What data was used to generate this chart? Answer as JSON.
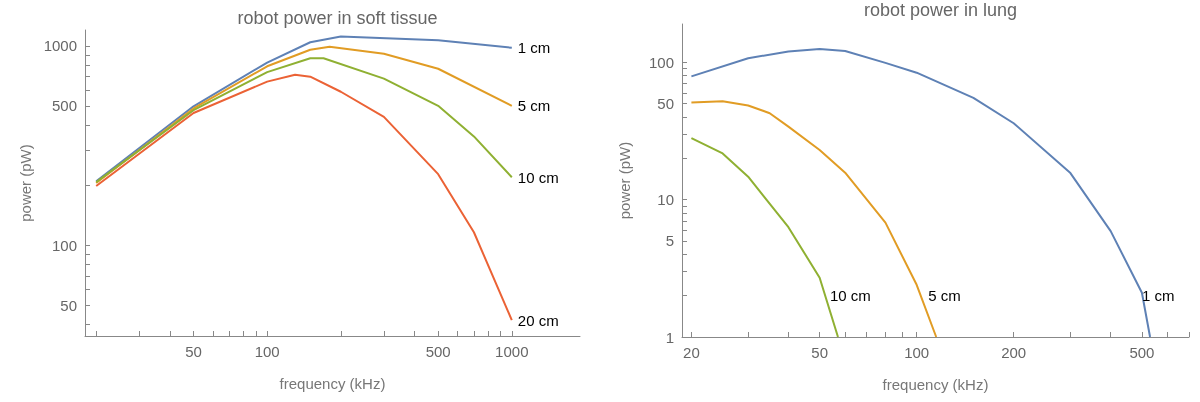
{
  "chart_data": [
    {
      "type": "line",
      "title": "robot power in soft tissue",
      "xlabel": "frequency (kHz)",
      "ylabel": "power (pW)",
      "log": "xy",
      "grid": false,
      "legend": false,
      "line_style": "solid",
      "xlim": [
        18,
        1900
      ],
      "ylim": [
        35,
        1200
      ],
      "xticks": [
        {
          "value": 20,
          "label": null
        },
        {
          "value": 30,
          "label": null
        },
        {
          "value": 40,
          "label": null
        },
        50,
        {
          "value": 60,
          "label": null
        },
        {
          "value": 70,
          "label": null
        },
        {
          "value": 80,
          "label": null
        },
        {
          "value": 90,
          "label": null
        },
        100,
        {
          "value": 200,
          "label": null
        },
        {
          "value": 300,
          "label": null
        },
        {
          "value": 400,
          "label": null
        },
        500,
        {
          "value": 600,
          "label": null
        },
        {
          "value": 700,
          "label": null
        },
        {
          "value": 800,
          "label": null
        },
        {
          "value": 900,
          "label": null
        },
        1000
      ],
      "yticks": [
        {
          "value": 40,
          "label": null
        },
        50,
        {
          "value": 60,
          "label": null
        },
        {
          "value": 70,
          "label": null
        },
        {
          "value": 80,
          "label": null
        },
        {
          "value": 90,
          "label": null
        },
        100,
        {
          "value": 200,
          "label": null
        },
        {
          "value": 300,
          "label": null
        },
        {
          "value": 400,
          "label": null
        },
        500,
        {
          "value": 600,
          "label": null
        },
        {
          "value": 700,
          "label": null
        },
        {
          "value": 800,
          "label": null
        },
        {
          "value": 900,
          "label": null
        },
        1000
      ],
      "series": [
        {
          "name": "1 cm",
          "color": "#5e81b5",
          "x": [
            20,
            50,
            100,
            150,
            200,
            500,
            1000
          ],
          "values": [
            209,
            497,
            824,
            1042,
            1114,
            1066,
            977
          ]
        },
        {
          "name": "5 cm",
          "color": "#e19c24",
          "x": [
            20,
            50,
            100,
            150,
            180,
            300,
            500,
            1000
          ],
          "values": [
            205,
            485,
            789,
            955,
            988,
            912,
            767,
            500
          ]
        },
        {
          "name": "10 cm",
          "color": "#8fb032",
          "x": [
            20,
            50,
            100,
            150,
            170,
            300,
            500,
            700,
            1000
          ],
          "values": [
            207,
            475,
            738,
            866,
            866,
            684,
            500,
            351,
            219
          ]
        },
        {
          "name": "20 cm",
          "color": "#eb6235",
          "x": [
            20,
            50,
            100,
            130,
            150,
            200,
            300,
            500,
            700,
            1000
          ],
          "values": [
            198,
            460,
            661,
            716,
            700,
            588,
            440,
            227,
            116,
            42
          ]
        }
      ]
    },
    {
      "type": "line",
      "title": "robot power in lung",
      "xlabel": "frequency (kHz)",
      "ylabel": "power (pW)",
      "log": "xy",
      "grid": false,
      "legend": false,
      "line_style": "solid",
      "xlim": [
        18.7,
        700
      ],
      "ylim": [
        1,
        190
      ],
      "xticks": [
        20,
        {
          "value": 30,
          "label": null
        },
        {
          "value": 40,
          "label": null
        },
        50,
        {
          "value": 60,
          "label": null
        },
        {
          "value": 70,
          "label": null
        },
        {
          "value": 80,
          "label": null
        },
        {
          "value": 90,
          "label": null
        },
        100,
        200,
        {
          "value": 300,
          "label": null
        },
        {
          "value": 400,
          "label": null
        },
        500,
        {
          "value": 600,
          "label": null
        },
        {
          "value": 700,
          "label": null
        }
      ],
      "yticks": [
        1,
        {
          "value": 2,
          "label": null
        },
        {
          "value": 3,
          "label": null
        },
        {
          "value": 4,
          "label": null
        },
        5,
        {
          "value": 6,
          "label": null
        },
        {
          "value": 7,
          "label": null
        },
        {
          "value": 8,
          "label": null
        },
        {
          "value": 9,
          "label": null
        },
        10,
        {
          "value": 20,
          "label": null
        },
        {
          "value": 30,
          "label": null
        },
        {
          "value": 40,
          "label": null
        },
        50,
        {
          "value": 60,
          "label": null
        },
        {
          "value": 70,
          "label": null
        },
        {
          "value": 80,
          "label": null
        },
        {
          "value": 90,
          "label": null
        },
        100
      ],
      "series": [
        {
          "name": "1 cm",
          "color": "#5e81b5",
          "x": [
            20,
            30,
            40,
            50,
            60,
            80,
            100,
            150,
            200,
            300,
            400,
            500,
            530
          ],
          "values": [
            79,
            107,
            120,
            125,
            121,
            99,
            84,
            55,
            36,
            15.6,
            5.9,
            2.1,
            1
          ]
        },
        {
          "name": "5 cm",
          "color": "#e19c24",
          "x": [
            20,
            25,
            30,
            35,
            40,
            50,
            60,
            80,
            100,
            115
          ],
          "values": [
            51,
            52,
            48.5,
            42.6,
            34,
            23,
            15.7,
            6.8,
            2.4,
            1
          ]
        },
        {
          "name": "10 cm",
          "color": "#8fb032",
          "x": [
            20,
            25,
            30,
            40,
            50,
            57
          ],
          "values": [
            28,
            21.7,
            14.7,
            6.3,
            2.7,
            1
          ]
        }
      ]
    }
  ]
}
